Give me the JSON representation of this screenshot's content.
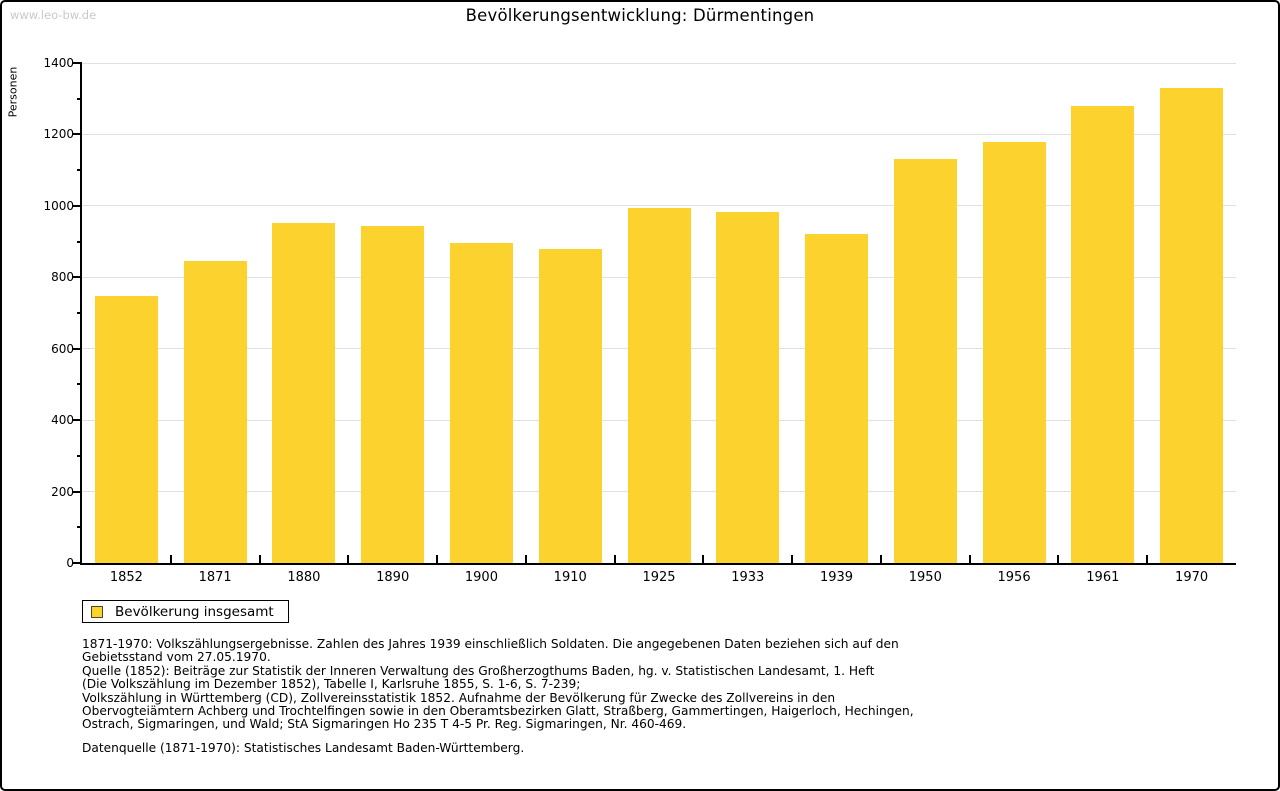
{
  "page": {
    "watermark": "www.leo-bw.de",
    "title": "Bevölkerungsentwicklung: Dürmentingen"
  },
  "chart_data": {
    "type": "bar",
    "title": "Bevölkerungsentwicklung: Dürmentingen",
    "xlabel": "",
    "ylabel": "Personen",
    "categories": [
      "1852",
      "1871",
      "1880",
      "1890",
      "1900",
      "1910",
      "1925",
      "1933",
      "1939",
      "1950",
      "1956",
      "1961",
      "1970"
    ],
    "series": [
      {
        "name": "Bevölkerung insgesamt",
        "values": [
          748,
          845,
          953,
          944,
          896,
          878,
          993,
          983,
          921,
          1130,
          1180,
          1280,
          1330
        ]
      }
    ],
    "ylim": [
      0,
      1400
    ],
    "ytick_step": 200,
    "ytick_minor_step": 100,
    "grid": true,
    "legend_position": "bottom-left",
    "bar_color": "#FCD32E",
    "grid_color": "#E0E0E0",
    "axis_color": "#000000"
  },
  "legend": {
    "label": "Bevölkerung insgesamt"
  },
  "footer": {
    "lines": [
      "1871-1970: Volkszählungsergebnisse. Zahlen des Jahres 1939 einschließlich Soldaten. Die angegebenen Daten beziehen sich auf den",
      "Gebietsstand vom 27.05.1970.",
      "Quelle (1852): Beiträge zur Statistik der Inneren Verwaltung des Großherzogthums Baden, hg. v. Statistischen Landesamt, 1. Heft",
      "(Die Volkszählung im Dezember 1852), Tabelle I, Karlsruhe 1855, S. 1-6, S. 7-239;",
      "Volkszählung in Württemberg (CD), Zollvereinsstatistik 1852. Aufnahme der Bevölkerung für Zwecke des Zollvereins in den",
      "Obervogteiämtern Achberg und Trochtelfingen sowie in den Oberamtsbezirken Glatt, Straßberg, Gammertingen, Haigerloch, Hechingen,",
      "Ostrach, Sigmaringen, und Wald; StA Sigmaringen Ho 235 T 4-5 Pr. Reg. Sigmaringen, Nr. 460-469."
    ],
    "datasource": "Datenquelle (1871-1970): Statistisches Landesamt Baden-Württemberg."
  }
}
